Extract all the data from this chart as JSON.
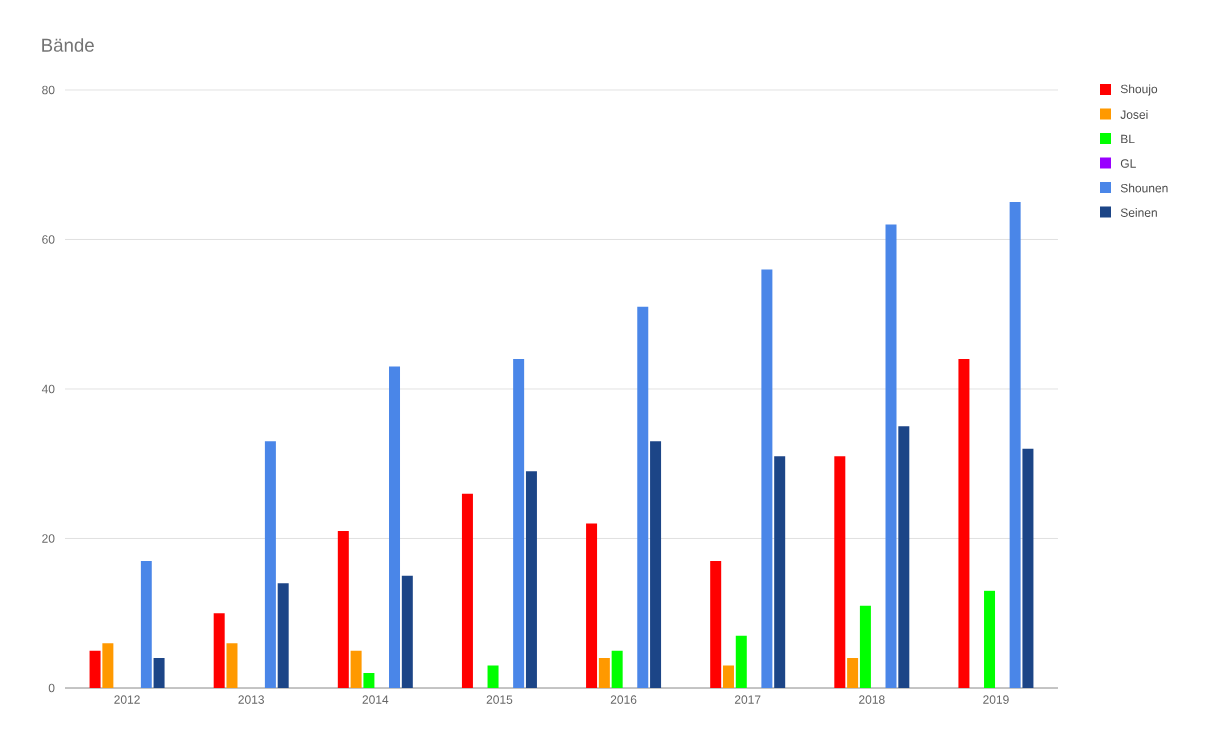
{
  "chart_data": {
    "type": "bar",
    "title": "Bände",
    "categories": [
      "2012",
      "2013",
      "2014",
      "2015",
      "2016",
      "2017",
      "2018",
      "2019"
    ],
    "series": [
      {
        "name": "Shoujo",
        "color": "#ff0000",
        "values": [
          5,
          10,
          21,
          26,
          22,
          17,
          31,
          44
        ]
      },
      {
        "name": "Josei",
        "color": "#ff9900",
        "values": [
          6,
          6,
          5,
          null,
          4,
          3,
          4,
          null
        ]
      },
      {
        "name": "BL",
        "color": "#00ff00",
        "values": [
          null,
          null,
          2,
          3,
          5,
          7,
          11,
          13
        ]
      },
      {
        "name": "GL",
        "color": "#9900ff",
        "values": [
          null,
          null,
          null,
          null,
          null,
          null,
          null,
          null
        ]
      },
      {
        "name": "Shounen",
        "color": "#4a86e8",
        "values": [
          17,
          33,
          43,
          44,
          51,
          56,
          62,
          65
        ]
      },
      {
        "name": "Seinen",
        "color": "#1c4587",
        "values": [
          4,
          14,
          15,
          29,
          33,
          31,
          35,
          32
        ]
      }
    ],
    "ylim": [
      0,
      80
    ],
    "yticks": [
      0,
      20,
      40,
      60,
      80
    ],
    "grid": "y",
    "legend": "top right"
  }
}
